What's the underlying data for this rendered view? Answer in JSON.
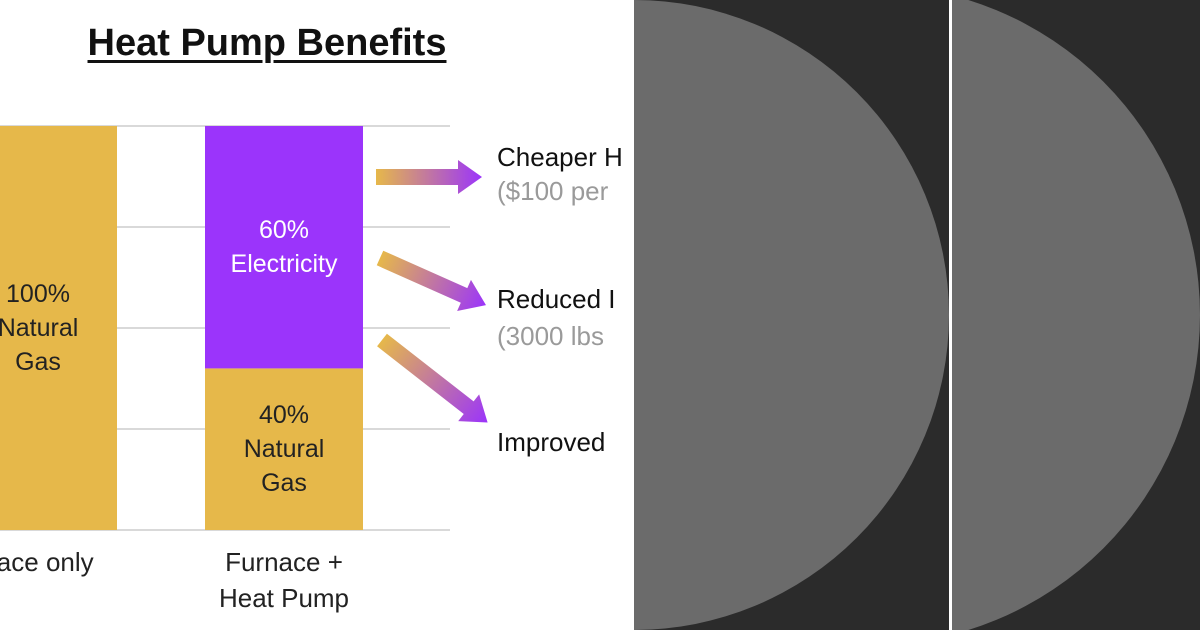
{
  "chart_data": {
    "type": "stacked_bar",
    "title": "Heat Pump Benefits",
    "categories": [
      "nace only",
      "Furnace + Heat Pump"
    ],
    "series": [
      {
        "color": "#e6b84a",
        "values": [
          100,
          40
        ],
        "value_labels": [
          "100% Natural Gas",
          "40% Natural Gas"
        ]
      },
      {
        "color": "#9b34fb",
        "values": [
          null,
          60
        ],
        "value_labels": [
          null,
          "60% Electricity"
        ]
      }
    ],
    "ylim": [
      0,
      100
    ],
    "yticks": [
      0,
      25,
      50,
      75,
      100
    ],
    "grid": true,
    "annotations": [
      {
        "text": "Cheaper H",
        "note": "($100 per"
      },
      {
        "text": "Reduced I",
        "note": "(3000 lbs"
      },
      {
        "text": "Improved"
      }
    ]
  }
}
